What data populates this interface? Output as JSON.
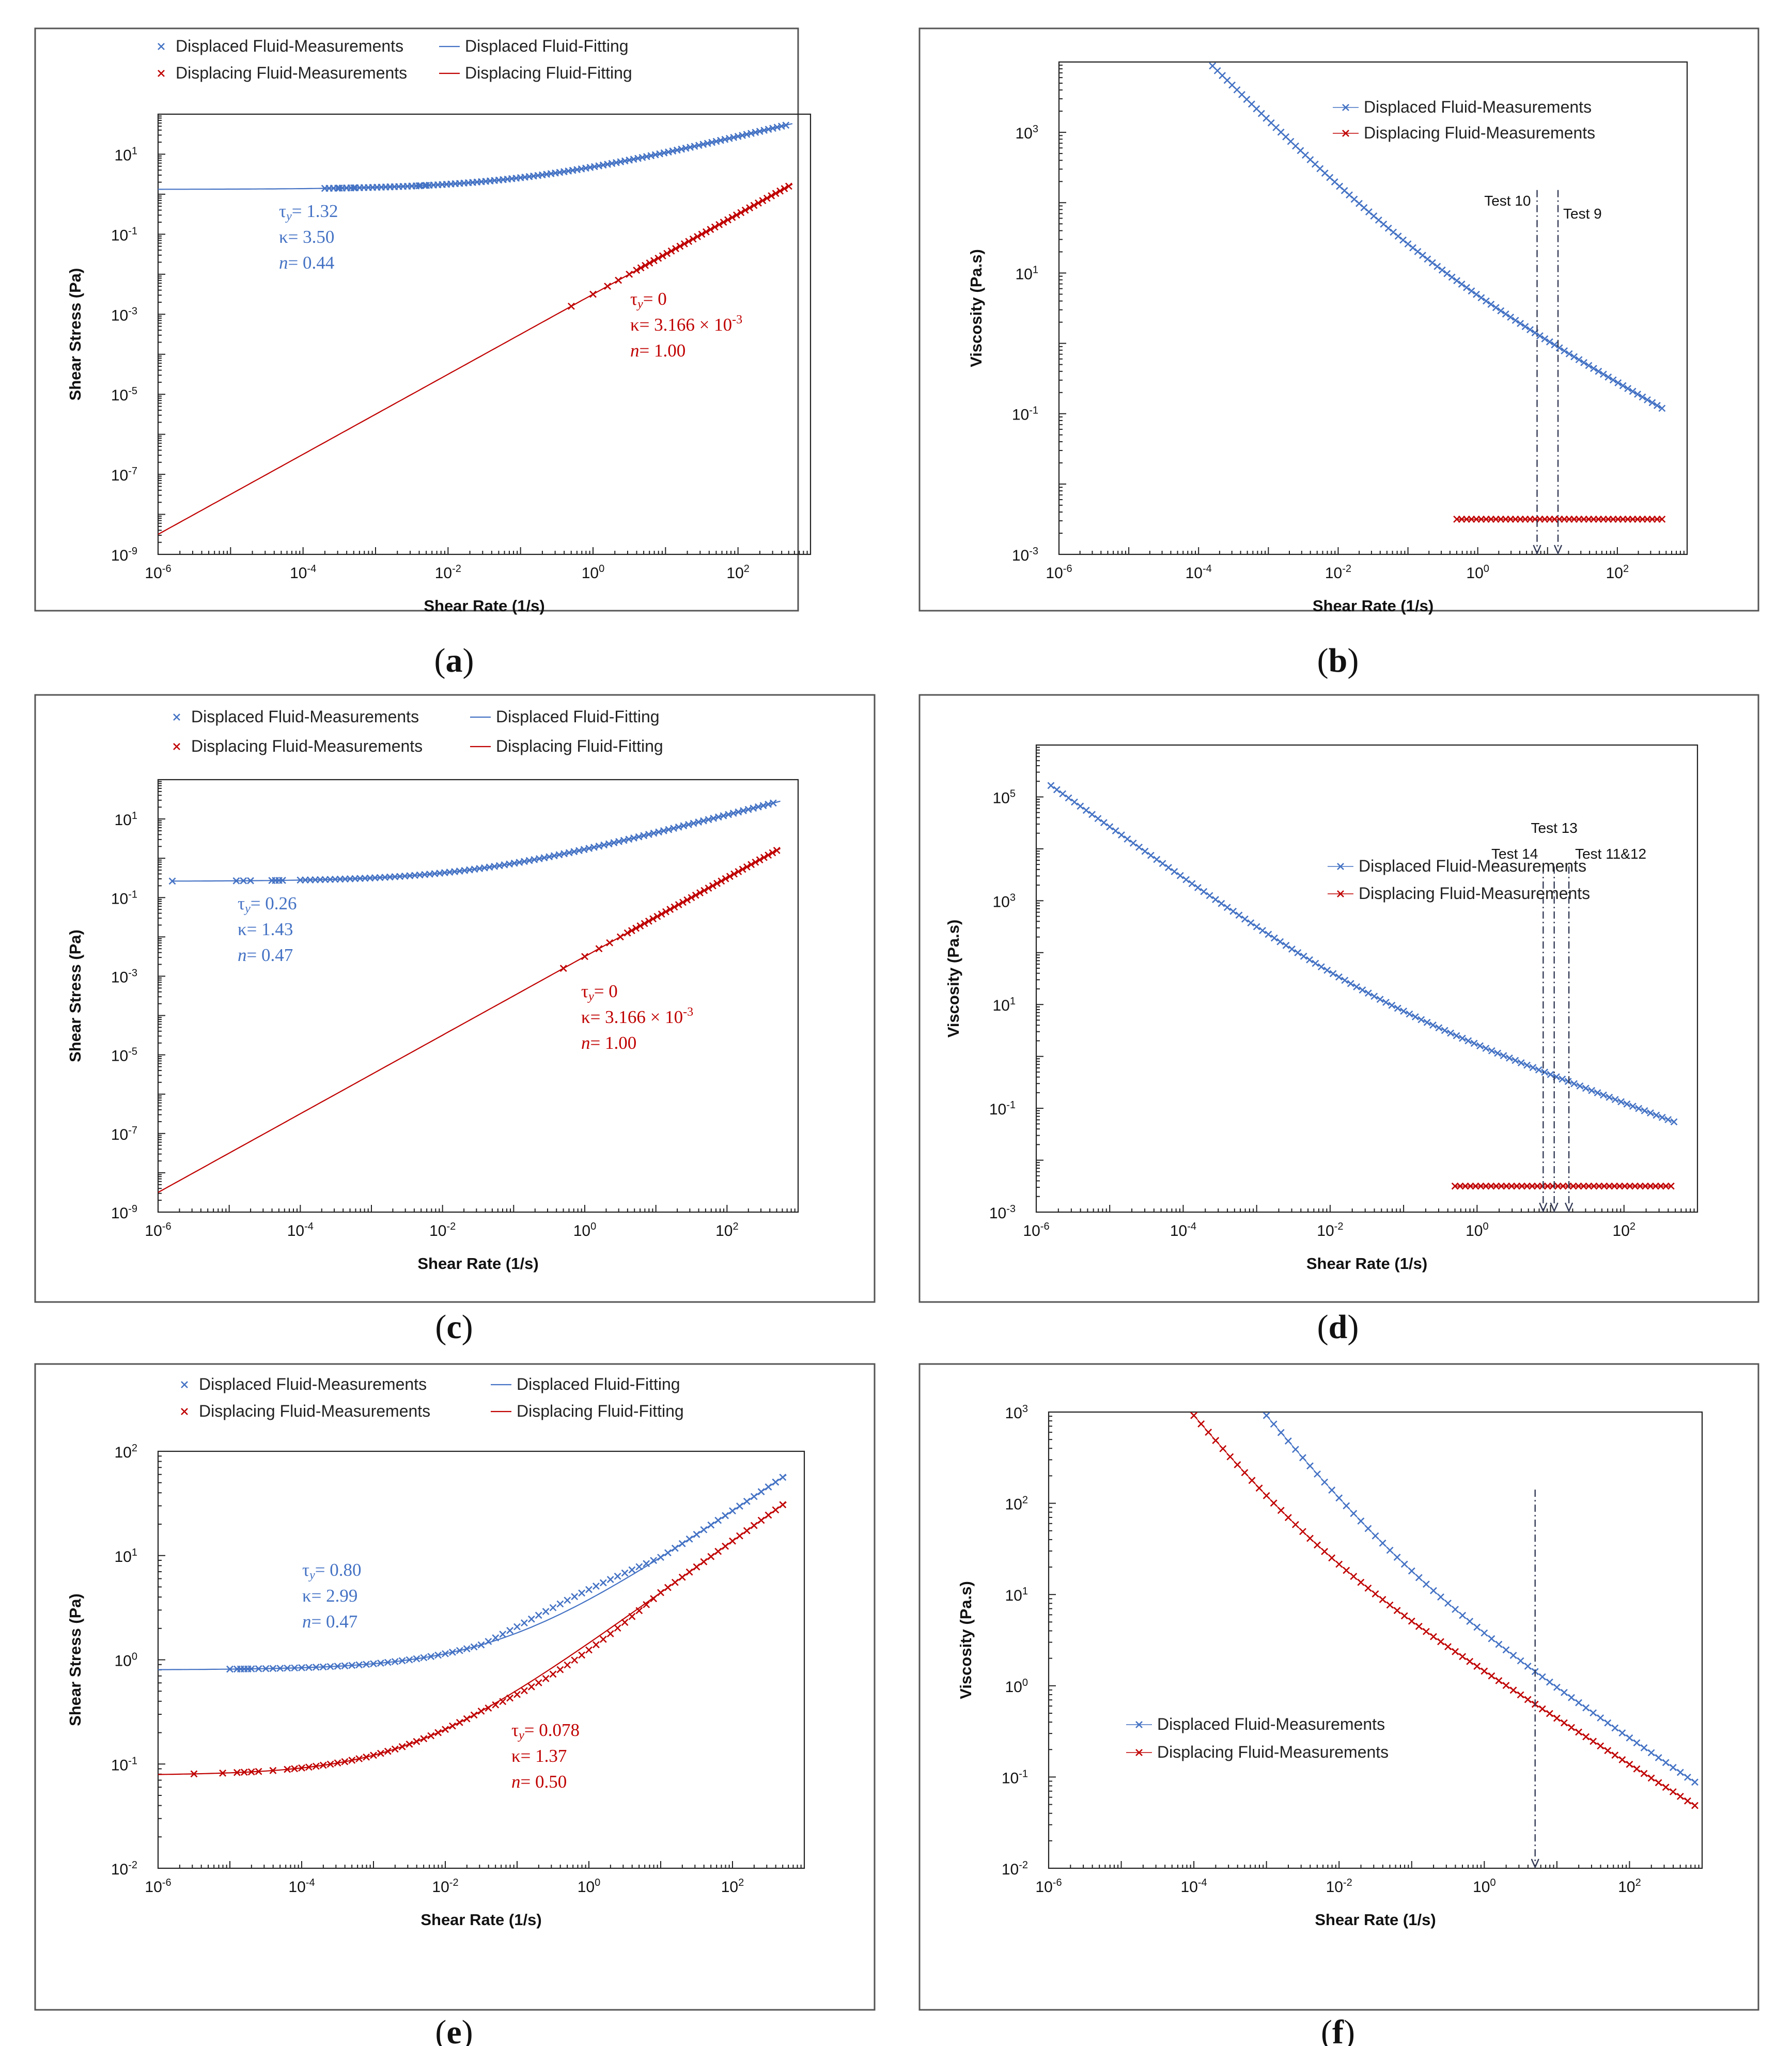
{
  "colors": {
    "blue": "#4472C4",
    "red": "#C00000",
    "frame": "#555555",
    "axis": "#222222"
  },
  "chart_data": [
    {
      "id": "a",
      "type": "scatter",
      "caption": "(a)",
      "xlabel": "Shear Rate (1/s)",
      "ylabel": "Shear Stress (Pa)",
      "xlim_exp": [
        -6,
        3
      ],
      "ylim_exp": [
        -9,
        2
      ],
      "xticks_exp": [
        -6,
        -4,
        -2,
        0,
        2
      ],
      "yticks_exp": [
        -9,
        -7,
        -5,
        -3,
        -1,
        1
      ],
      "legend": [
        "Displaced Fluid-Measurements",
        "Displaced Fluid-Fitting",
        "Displacing Fluid-Measurements",
        "Displacing Fluid-Fitting"
      ],
      "series": [
        {
          "name": "Displaced Fluid-Measurements",
          "color": "blue",
          "kind": "marker",
          "model": {
            "tau_y": 1.32,
            "k": 3.5,
            "n": 0.44
          },
          "x_log_range": [
            -3.7,
            2.7
          ],
          "step": 0.06,
          "extra_x": [
            -3.5,
            -3.4,
            -3.3,
            -2.8,
            -2.5,
            -2.4,
            -2.3
          ]
        },
        {
          "name": "Displaced Fluid-Fitting",
          "color": "blue",
          "kind": "line",
          "model": {
            "tau_y": 1.32,
            "k": 3.5,
            "n": 0.44
          },
          "x_log_range": [
            -6,
            2.75
          ]
        },
        {
          "name": "Displacing Fluid-Measurements",
          "color": "red",
          "kind": "marker",
          "model": {
            "tau_y": 0,
            "k": 0.003166,
            "n": 1.0
          },
          "x_log_range": [
            0.6,
            2.7
          ],
          "step": 0.06,
          "extra_x": [
            -0.3,
            0.0,
            0.2,
            0.35,
            0.5
          ]
        },
        {
          "name": "Displacing Fluid-Fitting",
          "color": "red",
          "kind": "line",
          "model": {
            "tau_y": 0,
            "k": 0.003166,
            "n": 1.0
          },
          "x_log_range": [
            -6,
            2.75
          ]
        }
      ],
      "annotations": [
        {
          "color": "blue",
          "lines": [
            "τy= 1.32",
            "κ= 3.50",
            "n= 0.44"
          ]
        },
        {
          "color": "red",
          "lines": [
            "τy= 0",
            "κ= 3.166 × 10-3",
            "n= 1.00"
          ]
        }
      ]
    },
    {
      "id": "b",
      "type": "scatter",
      "caption": "(b)",
      "xlabel": "Shear Rate (1/s)",
      "ylabel": "Viscosity (Pa.s)",
      "xlim_exp": [
        -6,
        3
      ],
      "ylim_exp": [
        -3,
        4
      ],
      "xticks_exp": [
        -6,
        -4,
        -2,
        0,
        2
      ],
      "yticks_exp": [
        -3,
        -1,
        1,
        3
      ],
      "legend": [
        "Displaced Fluid-Measurements",
        "Displacing Fluid-Measurements"
      ],
      "series": [
        {
          "name": "Displaced Fluid-Measurements",
          "color": "blue",
          "kind": "viscosity",
          "model": {
            "tau_y": 1.32,
            "k": 3.5,
            "n": 0.44
          },
          "x_log_range": [
            -3.8,
            2.7
          ],
          "step": 0.07
        },
        {
          "name": "Displacing Fluid-Measurements",
          "color": "red",
          "kind": "viscosity",
          "model": {
            "tau_y": 0,
            "k": 0.003166,
            "n": 1.0
          },
          "x_log_range": [
            -0.3,
            2.7
          ],
          "step": 0.07
        }
      ],
      "test_lines": [
        {
          "label": "Test 10",
          "x_log": 0.85
        },
        {
          "label": "Test 9",
          "x_log": 1.15
        }
      ]
    },
    {
      "id": "c",
      "type": "scatter",
      "caption": "(c)",
      "xlabel": "Shear Rate (1/s)",
      "ylabel": "Shear Stress (Pa)",
      "xlim_exp": [
        -6,
        3
      ],
      "ylim_exp": [
        -9,
        2
      ],
      "xticks_exp": [
        -6,
        -4,
        -2,
        0,
        2
      ],
      "yticks_exp": [
        -9,
        -7,
        -5,
        -3,
        -1,
        1
      ],
      "legend": [
        "Displaced Fluid-Measurements",
        "Displaced Fluid-Fitting",
        "Displacing Fluid-Measurements",
        "Displacing Fluid-Fitting"
      ],
      "series": [
        {
          "name": "Displaced Fluid-Measurements",
          "color": "blue",
          "kind": "marker",
          "model": {
            "tau_y": 0.26,
            "k": 1.43,
            "n": 0.47
          },
          "x_log_range": [
            -4.0,
            2.7
          ],
          "step": 0.07,
          "extra_x": [
            -5.8,
            -4.9,
            -4.8,
            -4.7,
            -4.4,
            -4.35,
            -4.3,
            -4.25
          ]
        },
        {
          "name": "Displaced Fluid-Fitting",
          "color": "blue",
          "kind": "line",
          "model": {
            "tau_y": 0.26,
            "k": 1.43,
            "n": 0.47
          },
          "x_log_range": [
            -5.8,
            2.75
          ]
        },
        {
          "name": "Displacing Fluid-Measurements",
          "color": "red",
          "kind": "marker",
          "model": {
            "tau_y": 0,
            "k": 0.003166,
            "n": 1.0
          },
          "x_log_range": [
            0.6,
            2.7
          ],
          "step": 0.06,
          "extra_x": [
            -0.3,
            0.0,
            0.2,
            0.35,
            0.5
          ]
        },
        {
          "name": "Displacing Fluid-Fitting",
          "color": "red",
          "kind": "line",
          "model": {
            "tau_y": 0,
            "k": 0.003166,
            "n": 1.0
          },
          "x_log_range": [
            -6,
            2.75
          ]
        }
      ],
      "annotations": [
        {
          "color": "blue",
          "lines": [
            "τy= 0.26",
            "κ= 1.43",
            "n= 0.47"
          ]
        },
        {
          "color": "red",
          "lines": [
            "τy= 0",
            "κ= 3.166 × 10-3",
            "n= 1.00"
          ]
        }
      ]
    },
    {
      "id": "d",
      "type": "scatter",
      "caption": "(d)",
      "xlabel": "Shear Rate (1/s)",
      "ylabel": "Viscosity (Pa.s)",
      "xlim_exp": [
        -6,
        3
      ],
      "ylim_exp": [
        -3,
        6
      ],
      "xticks_exp": [
        -6,
        -4,
        -2,
        0,
        2
      ],
      "yticks_exp": [
        -3,
        -1,
        1,
        3,
        5
      ],
      "legend": [
        "Displaced Fluid-Measurements",
        "Displacing Fluid-Measurements"
      ],
      "series": [
        {
          "name": "Displaced Fluid-Measurements",
          "color": "blue",
          "kind": "viscosity",
          "model": {
            "tau_y": 0.26,
            "k": 1.43,
            "n": 0.47
          },
          "x_log_range": [
            -5.8,
            2.7
          ],
          "step": 0.08
        },
        {
          "name": "Displacing Fluid-Measurements",
          "color": "red",
          "kind": "viscosity",
          "model": {
            "tau_y": 0,
            "k": 0.003166,
            "n": 1.0
          },
          "x_log_range": [
            -0.3,
            2.7
          ],
          "step": 0.07
        }
      ],
      "test_lines": [
        {
          "label": "Test 14",
          "x_log": 0.9
        },
        {
          "label": "Test 13",
          "x_log": 1.05
        },
        {
          "label": "Test 11&12",
          "x_log": 1.25
        }
      ]
    },
    {
      "id": "e",
      "type": "scatter",
      "caption": "(e)",
      "xlabel": "Shear Rate (1/s)",
      "ylabel": "Shear Stress (Pa)",
      "xlim_exp": [
        -6,
        3
      ],
      "ylim_exp": [
        -2,
        2
      ],
      "xticks_exp": [
        -6,
        -4,
        -2,
        0,
        2
      ],
      "yticks_exp": [
        -2,
        -1,
        0,
        1,
        2
      ],
      "legend": [
        "Displaced Fluid-Measurements",
        "Displaced Fluid-Fitting",
        "Displacing Fluid-Measurements",
        "Displacing Fluid-Fitting"
      ],
      "series": [
        {
          "name": "Displaced Fluid-Measurements",
          "color": "blue",
          "kind": "marker",
          "model": {
            "tau_y": 0.8,
            "k": 2.99,
            "n": 0.47
          },
          "x_log_range": [
            -4.3,
            2.75
          ],
          "step": 0.1,
          "extra_x": [
            -5.0,
            -4.9,
            -4.85,
            -4.8,
            -4.75,
            -4.7,
            -4.6,
            -4.5,
            -4.4
          ],
          "bump": 0.1
        },
        {
          "name": "Displaced Fluid-Fitting",
          "color": "blue",
          "kind": "line",
          "model": {
            "tau_y": 0.8,
            "k": 2.99,
            "n": 0.47
          },
          "x_log_range": [
            -6,
            2.75
          ]
        },
        {
          "name": "Displacing Fluid-Measurements",
          "color": "red",
          "kind": "marker",
          "model": {
            "tau_y": 0.078,
            "k": 1.37,
            "n": 0.5
          },
          "x_log_range": [
            -4.2,
            2.75
          ],
          "step": 0.1,
          "extra_x": [
            -5.5,
            -5.1,
            -4.9,
            -4.8,
            -4.7,
            -4.6,
            -4.4
          ],
          "bump": -0.07
        },
        {
          "name": "Displacing Fluid-Fitting",
          "color": "red",
          "kind": "line",
          "model": {
            "tau_y": 0.078,
            "k": 1.37,
            "n": 0.5
          },
          "x_log_range": [
            -6,
            2.75
          ]
        }
      ],
      "annotations": [
        {
          "color": "blue",
          "lines": [
            "τy= 0.80",
            "κ= 2.99",
            "n= 0.47"
          ]
        },
        {
          "color": "red",
          "lines": [
            "τy= 0.078",
            "κ= 1.37",
            "n= 0.50"
          ]
        }
      ]
    },
    {
      "id": "f",
      "type": "scatter",
      "caption": "(f)",
      "xlabel": "Shear Rate (1/s)",
      "ylabel": "Viscosity (Pa.s)",
      "xlim_exp": [
        -6,
        3
      ],
      "ylim_exp": [
        -2,
        3
      ],
      "xticks_exp": [
        -6,
        -4,
        -2,
        0,
        2
      ],
      "yticks_exp": [
        -2,
        -1,
        0,
        1,
        2,
        3
      ],
      "legend": [
        "Displaced Fluid-Measurements",
        "Displacing Fluid-Measurements"
      ],
      "series": [
        {
          "name": "Displaced Fluid-Measurements",
          "color": "blue",
          "kind": "viscosity",
          "model": {
            "tau_y": 0.8,
            "k": 2.99,
            "n": 0.47
          },
          "x_log_range": [
            -3.0,
            2.9
          ],
          "step": 0.1
        },
        {
          "name": "Displacing Fluid-Measurements",
          "color": "red",
          "kind": "viscosity",
          "model": {
            "tau_y": 0.078,
            "k": 1.37,
            "n": 0.5
          },
          "x_log_range": [
            -4.0,
            2.9
          ],
          "step": 0.1
        }
      ],
      "test_lines": [
        {
          "label": "",
          "x_log": 0.7
        }
      ]
    }
  ]
}
